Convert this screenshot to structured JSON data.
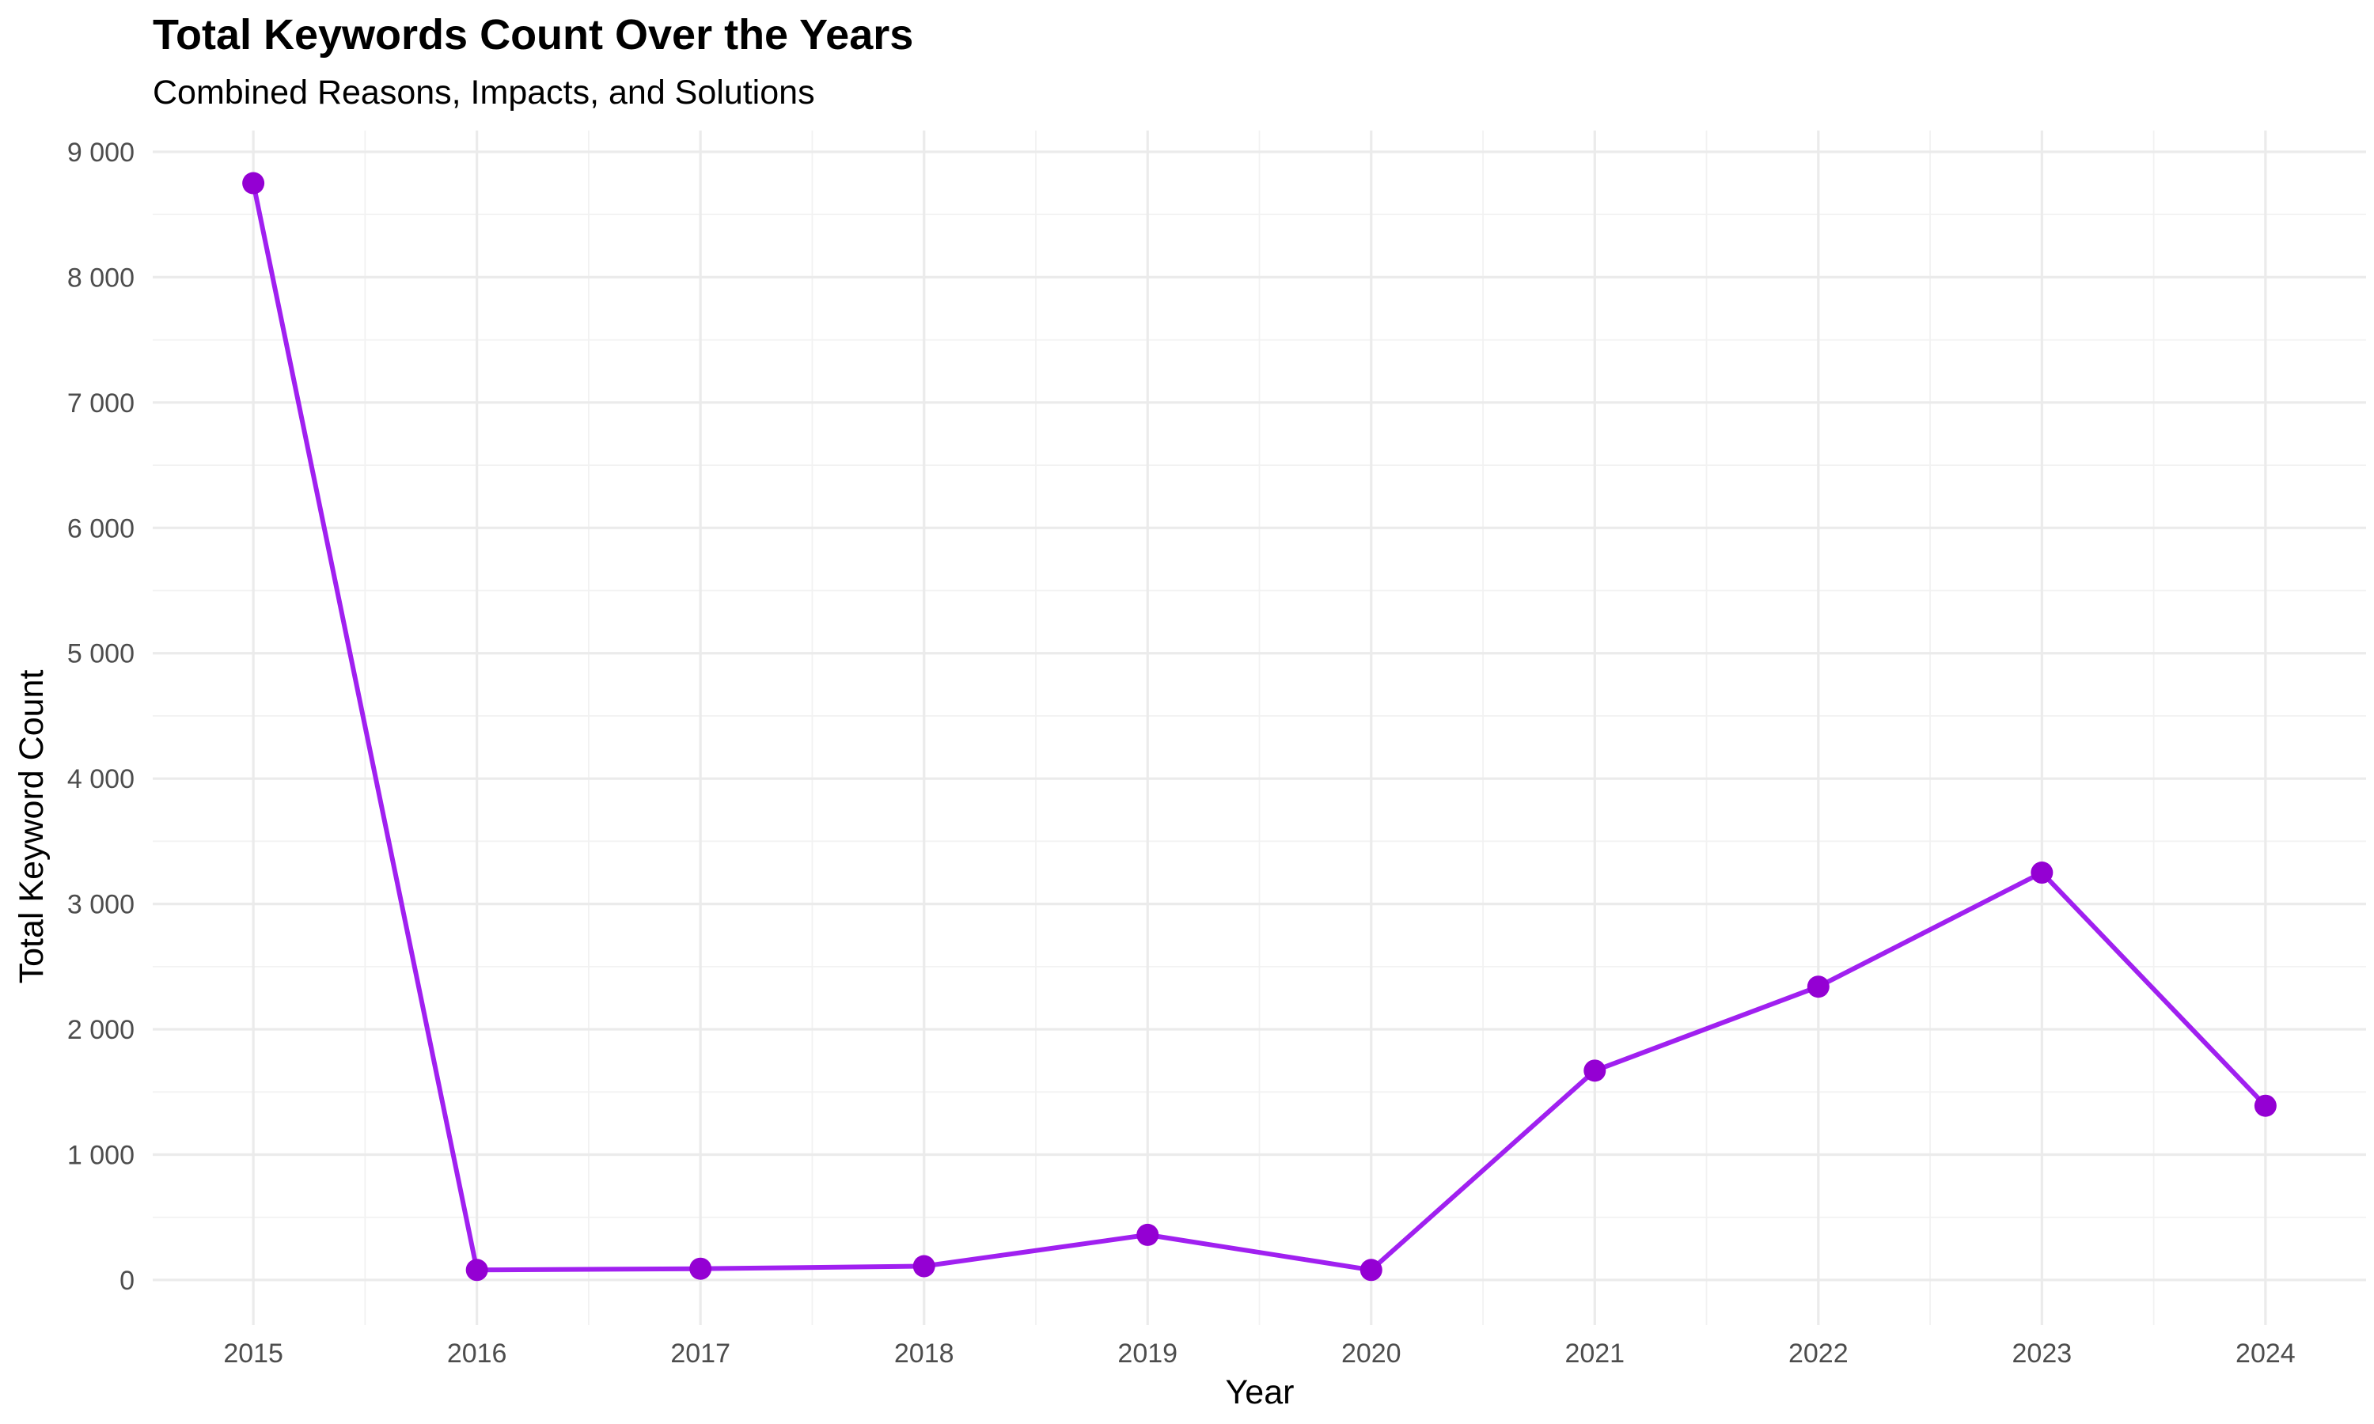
{
  "chart_data": {
    "type": "line",
    "title": "Total Keywords Count Over the Years",
    "subtitle": "Combined Reasons, Impacts, and Solutions",
    "xlabel": "Year",
    "ylabel": "Total Keyword Count",
    "x": [
      2015,
      2016,
      2017,
      2018,
      2019,
      2020,
      2021,
      2022,
      2023,
      2024
    ],
    "x_tick_labels": [
      "2015",
      "2016",
      "2017",
      "2018",
      "2019",
      "2020",
      "2021",
      "2022",
      "2023",
      "2024"
    ],
    "series": [
      {
        "values": [
          8750,
          80,
          90,
          110,
          360,
          80,
          1670,
          2340,
          3250,
          1390
        ],
        "color": "#a020f0",
        "point_color": "#9400d3"
      }
    ],
    "y_ticks": [
      0,
      1000,
      2000,
      3000,
      4000,
      5000,
      6000,
      7000,
      8000,
      9000
    ],
    "y_tick_labels": [
      "0",
      "1 000",
      "2 000",
      "3 000",
      "4 000",
      "5 000",
      "6 000",
      "7 000",
      "8 000",
      "9 000"
    ],
    "xlim": [
      2014.55,
      2024.45
    ],
    "ylim": [
      -360,
      9170
    ],
    "grid": true,
    "legend": "none"
  }
}
